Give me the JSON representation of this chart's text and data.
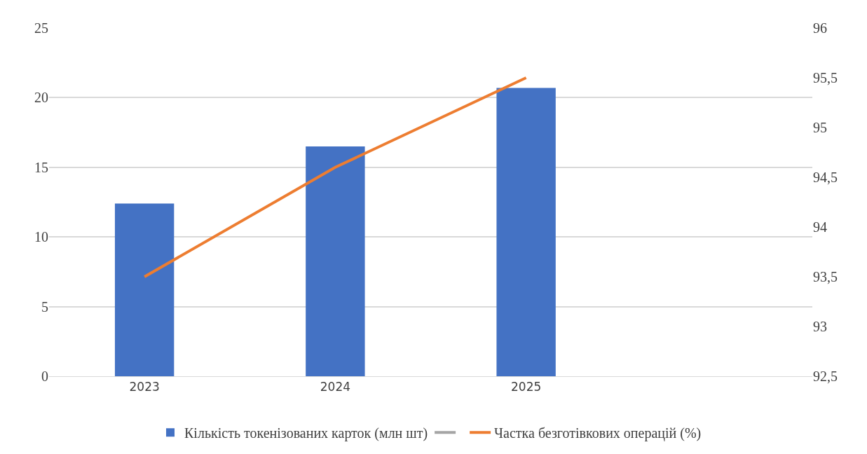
{
  "chart_data": {
    "type": "bar",
    "categories": [
      "2023",
      "2024",
      "2025",
      null
    ],
    "series": [
      {
        "name": "Кількість токенізованих карток (млн шт)",
        "color": "#4472c4",
        "values": [
          12.4,
          16.5,
          20.7,
          null
        ]
      },
      {
        "type": "line",
        "color": "#a5a5a5",
        "values": [
          null,
          null,
          null,
          null
        ]
      },
      {
        "type": "line",
        "name": "Частка безготівкових операцій (%)",
        "color": "#ed7d31",
        "axis": "y2",
        "values": [
          93.5,
          94.6,
          95.5,
          null
        ]
      }
    ],
    "ylim": [
      0,
      25
    ],
    "yticks": [
      0,
      5,
      10,
      15,
      20,
      25
    ],
    "y2lim": [
      92.5,
      96
    ],
    "y2ticks": [
      {
        "value": 92.5,
        "label": "92,5"
      },
      93,
      {
        "value": 93.5,
        "label": "93,5"
      },
      94,
      {
        "value": 94.5,
        "label": "94,5"
      },
      95,
      {
        "value": 95.5,
        "label": "95,5"
      },
      96
    ],
    "grid": "y",
    "legend": "bottom",
    "marker": "none",
    "line_style": "solid"
  }
}
